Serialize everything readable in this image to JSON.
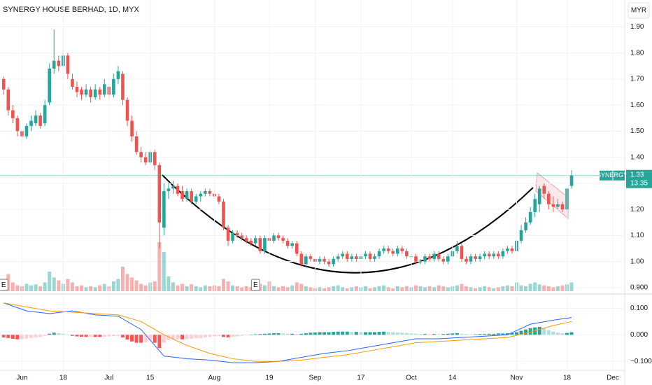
{
  "chart_data": [
    {
      "type": "candlestick",
      "title": "SYNERGY HOUSE BERHAD, 1D, MYX",
      "currency": "MYR",
      "symbol": "SYNERGY",
      "last_label": "1.33",
      "countdown": "13:35",
      "up_color": "#26a69a",
      "down_color": "#ef5350",
      "grid": true,
      "xlim": [
        -0.8,
        135.6
      ],
      "ylim": [
        0.881,
        2.003
      ],
      "yticks": [
        {
          "value": 1.9,
          "label": "1.90"
        },
        {
          "value": 1.8,
          "label": "1.80"
        },
        {
          "value": 1.7,
          "label": "1.70"
        },
        {
          "value": 1.6,
          "label": "1.60"
        },
        {
          "value": 1.5,
          "label": "1.50"
        },
        {
          "value": 1.4,
          "label": "1.40"
        },
        {
          "value": 1.3,
          "label": "1.30"
        },
        {
          "value": 1.2,
          "label": "1.20"
        },
        {
          "value": 1.1,
          "label": "1.10"
        },
        {
          "value": 1.0,
          "label": "1.00"
        },
        {
          "value": 0.9,
          "label": "0.900"
        }
      ],
      "candles": [
        [
          1.7,
          1.71,
          1.64,
          1.66
        ],
        [
          1.66,
          1.67,
          1.56,
          1.58
        ],
        [
          1.58,
          1.6,
          1.53,
          1.55
        ],
        [
          1.55,
          1.56,
          1.48,
          1.5
        ],
        [
          1.5,
          1.51,
          1.46,
          1.48
        ],
        [
          1.48,
          1.53,
          1.47,
          1.52
        ],
        [
          1.52,
          1.56,
          1.5,
          1.54
        ],
        [
          1.53,
          1.58,
          1.52,
          1.56
        ],
        [
          1.56,
          1.57,
          1.51,
          1.52
        ],
        [
          1.53,
          1.62,
          1.52,
          1.6
        ],
        [
          1.61,
          1.76,
          1.6,
          1.74
        ],
        [
          1.74,
          1.89,
          1.72,
          1.77
        ],
        [
          1.77,
          1.79,
          1.73,
          1.75
        ],
        [
          1.75,
          1.81,
          1.74,
          1.79
        ],
        [
          1.79,
          1.8,
          1.7,
          1.72
        ],
        [
          1.7,
          1.72,
          1.66,
          1.67
        ],
        [
          1.67,
          1.69,
          1.63,
          1.65
        ],
        [
          1.66,
          1.67,
          1.62,
          1.64
        ],
        [
          1.64,
          1.68,
          1.63,
          1.66
        ],
        [
          1.66,
          1.67,
          1.61,
          1.63
        ],
        [
          1.63,
          1.68,
          1.62,
          1.66
        ],
        [
          1.66,
          1.67,
          1.62,
          1.64
        ],
        [
          1.64,
          1.7,
          1.63,
          1.68
        ],
        [
          1.67,
          1.68,
          1.62,
          1.64
        ],
        [
          1.64,
          1.72,
          1.63,
          1.7
        ],
        [
          1.7,
          1.75,
          1.68,
          1.73
        ],
        [
          1.72,
          1.73,
          1.6,
          1.62
        ],
        [
          1.62,
          1.63,
          1.52,
          1.54
        ],
        [
          1.54,
          1.56,
          1.46,
          1.48
        ],
        [
          1.48,
          1.5,
          1.41,
          1.42
        ],
        [
          1.42,
          1.44,
          1.38,
          1.4
        ],
        [
          1.4,
          1.42,
          1.37,
          1.38
        ],
        [
          1.38,
          1.43,
          1.37,
          1.42
        ],
        [
          1.42,
          1.43,
          1.35,
          1.37
        ],
        [
          1.37,
          1.38,
          1.05,
          1.15
        ],
        [
          1.13,
          1.3,
          1.1,
          1.27
        ],
        [
          1.27,
          1.3,
          1.24,
          1.28
        ],
        [
          1.28,
          1.31,
          1.26,
          1.29
        ],
        [
          1.29,
          1.3,
          1.25,
          1.26
        ],
        [
          1.27,
          1.29,
          1.23,
          1.24
        ],
        [
          1.24,
          1.28,
          1.23,
          1.27
        ],
        [
          1.27,
          1.28,
          1.22,
          1.23
        ],
        [
          1.23,
          1.26,
          1.22,
          1.25
        ],
        [
          1.25,
          1.27,
          1.23,
          1.26
        ],
        [
          1.26,
          1.28,
          1.25,
          1.27
        ],
        [
          1.27,
          1.28,
          1.25,
          1.26
        ],
        [
          1.26,
          1.27,
          1.24,
          1.25
        ],
        [
          1.25,
          1.26,
          1.22,
          1.23
        ],
        [
          1.23,
          1.24,
          1.12,
          1.13
        ],
        [
          1.13,
          1.14,
          1.06,
          1.08
        ],
        [
          1.08,
          1.12,
          1.07,
          1.11
        ],
        [
          1.11,
          1.12,
          1.09,
          1.1
        ],
        [
          1.1,
          1.11,
          1.08,
          1.09
        ],
        [
          1.09,
          1.1,
          1.07,
          1.08
        ],
        [
          1.08,
          1.09,
          1.06,
          1.07
        ],
        [
          1.07,
          1.1,
          1.06,
          1.09
        ],
        [
          1.09,
          1.1,
          1.03,
          1.04
        ],
        [
          1.04,
          1.1,
          1.03,
          1.09
        ],
        [
          1.09,
          1.17,
          1.07,
          1.08
        ],
        [
          1.08,
          1.11,
          1.07,
          1.1
        ],
        [
          1.1,
          1.11,
          1.08,
          1.09
        ],
        [
          1.09,
          1.1,
          1.07,
          1.08
        ],
        [
          1.08,
          1.09,
          1.05,
          1.06
        ],
        [
          1.06,
          1.08,
          1.05,
          1.07
        ],
        [
          1.07,
          1.08,
          1.02,
          1.03
        ],
        [
          1.03,
          1.04,
          0.98,
          0.99
        ],
        [
          0.99,
          1.03,
          0.98,
          1.02
        ],
        [
          1.02,
          1.03,
          1.0,
          1.01
        ],
        [
          1.01,
          1.02,
          0.99,
          1.0
        ],
        [
          1.0,
          1.02,
          0.99,
          1.01
        ],
        [
          1.01,
          1.02,
          0.99,
          1.0
        ],
        [
          1.0,
          1.01,
          0.98,
          0.99
        ],
        [
          0.99,
          1.02,
          0.98,
          1.01
        ],
        [
          1.01,
          1.03,
          1.0,
          1.02
        ],
        [
          1.02,
          1.04,
          1.01,
          1.03
        ],
        [
          1.03,
          1.04,
          1.0,
          1.01
        ],
        [
          1.01,
          1.03,
          1.0,
          1.02
        ],
        [
          1.02,
          1.03,
          1.0,
          1.01
        ],
        [
          1.01,
          1.03,
          1.0,
          1.02
        ],
        [
          1.02,
          1.04,
          1.01,
          1.03
        ],
        [
          1.03,
          1.04,
          1.0,
          1.01
        ],
        [
          1.01,
          1.03,
          1.0,
          1.02
        ],
        [
          1.02,
          1.05,
          1.01,
          1.04
        ],
        [
          1.04,
          1.06,
          1.03,
          1.05
        ],
        [
          1.05,
          1.06,
          1.03,
          1.04
        ],
        [
          1.04,
          1.05,
          1.02,
          1.03
        ],
        [
          1.03,
          1.06,
          1.02,
          1.05
        ],
        [
          1.05,
          1.06,
          1.03,
          1.04
        ],
        [
          1.04,
          1.05,
          1.01,
          1.02
        ],
        [
          1.02,
          1.03,
          1.01,
          1.02
        ],
        [
          1.02,
          1.03,
          0.99,
          1.0
        ],
        [
          1.0,
          1.01,
          0.99,
          1.0
        ],
        [
          1.0,
          1.03,
          0.99,
          1.02
        ],
        [
          1.02,
          1.03,
          1.0,
          1.01
        ],
        [
          1.01,
          1.04,
          1.0,
          1.03
        ],
        [
          1.03,
          1.04,
          1.0,
          1.01
        ],
        [
          1.01,
          1.02,
          0.99,
          1.0
        ],
        [
          1.0,
          1.03,
          0.99,
          1.02
        ],
        [
          1.02,
          1.05,
          1.01,
          1.04
        ],
        [
          1.04,
          1.08,
          1.03,
          1.06
        ],
        [
          1.06,
          1.07,
          1.0,
          1.01
        ],
        [
          1.01,
          1.02,
          0.99,
          1.0
        ],
        [
          1.0,
          1.03,
          0.99,
          1.02
        ],
        [
          1.02,
          1.03,
          1.0,
          1.01
        ],
        [
          1.01,
          1.03,
          1.0,
          1.02
        ],
        [
          1.02,
          1.04,
          1.01,
          1.03
        ],
        [
          1.03,
          1.04,
          1.01,
          1.02
        ],
        [
          1.02,
          1.04,
          1.01,
          1.03
        ],
        [
          1.03,
          1.04,
          1.01,
          1.02
        ],
        [
          1.02,
          1.05,
          1.01,
          1.04
        ],
        [
          1.04,
          1.06,
          1.03,
          1.05
        ],
        [
          1.05,
          1.06,
          1.03,
          1.04
        ],
        [
          1.04,
          1.09,
          1.03,
          1.08
        ],
        [
          1.08,
          1.14,
          1.07,
          1.12
        ],
        [
          1.12,
          1.17,
          1.11,
          1.15
        ],
        [
          1.15,
          1.21,
          1.14,
          1.19
        ],
        [
          1.19,
          1.26,
          1.17,
          1.24
        ],
        [
          1.22,
          1.29,
          1.19,
          1.28
        ],
        [
          1.29,
          1.3,
          1.24,
          1.26
        ],
        [
          1.26,
          1.27,
          1.2,
          1.22
        ],
        [
          1.22,
          1.25,
          1.19,
          1.21
        ],
        [
          1.21,
          1.24,
          1.2,
          1.22
        ],
        [
          1.22,
          1.23,
          1.19,
          1.2
        ],
        [
          1.2,
          1.29,
          1.19,
          1.28
        ],
        [
          1.29,
          1.35,
          1.28,
          1.33
        ]
      ],
      "vlim": [
        0,
        100
      ],
      "volume": [
        20,
        35,
        18,
        12,
        10,
        15,
        12,
        14,
        10,
        18,
        40,
        28,
        22,
        15,
        25,
        18,
        10,
        12,
        8,
        10,
        8,
        12,
        15,
        10,
        20,
        25,
        50,
        35,
        28,
        22,
        15,
        12,
        18,
        20,
        100,
        80,
        30,
        18,
        12,
        15,
        10,
        14,
        10,
        8,
        12,
        10,
        12,
        10,
        25,
        20,
        12,
        10,
        8,
        10,
        8,
        10,
        15,
        12,
        20,
        10,
        8,
        10,
        8,
        12,
        18,
        15,
        10,
        8,
        6,
        8,
        6,
        8,
        10,
        12,
        8,
        6,
        8,
        10,
        8,
        10,
        6,
        8,
        10,
        12,
        8,
        6,
        10,
        8,
        10,
        8,
        12,
        10,
        8,
        10,
        8,
        12,
        10,
        8,
        10,
        12,
        15,
        10,
        8,
        6,
        8,
        10,
        8,
        6,
        8,
        10,
        12,
        10,
        18,
        12,
        10,
        15,
        18,
        14,
        12,
        10,
        8,
        10,
        12,
        14,
        18
      ],
      "events": [
        {
          "x": 0,
          "label": "E"
        },
        {
          "x": 55,
          "label": "E"
        }
      ]
    },
    {
      "type": "macd",
      "grid": true,
      "xlim": [
        -0.8,
        135.6
      ],
      "ylim": [
        -0.131,
        0.151
      ],
      "yticks": [
        {
          "value": 0.1,
          "label": "0.100"
        },
        {
          "value": 0,
          "label": "0.000"
        },
        {
          "value": -0.1,
          "label": "−0.100"
        }
      ],
      "xticks": [
        {
          "value": 4,
          "label": "Jun"
        },
        {
          "value": 13,
          "label": "18"
        },
        {
          "value": 23,
          "label": "Jul"
        },
        {
          "value": 32,
          "label": "15"
        },
        {
          "value": 46,
          "label": "Aug"
        },
        {
          "value": 58,
          "label": "19"
        },
        {
          "value": 68,
          "label": "Sep"
        },
        {
          "value": 78,
          "label": "17"
        },
        {
          "value": 89,
          "label": "Oct"
        },
        {
          "value": 98,
          "label": "14"
        },
        {
          "value": 112,
          "label": "Nov"
        },
        {
          "value": 123,
          "label": "18"
        },
        {
          "value": 133,
          "label": "Dec"
        }
      ],
      "histogram": [
        -0.01,
        -0.012,
        -0.015,
        -0.017,
        -0.016,
        -0.014,
        -0.012,
        -0.01,
        -0.008,
        -0.004,
        0.004,
        0.008,
        0.006,
        0.004,
        0.0,
        -0.004,
        -0.006,
        -0.007,
        -0.008,
        -0.007,
        -0.008,
        -0.008,
        -0.007,
        -0.006,
        -0.005,
        -0.004,
        -0.01,
        -0.018,
        -0.025,
        -0.03,
        -0.03,
        -0.028,
        -0.022,
        -0.03,
        -0.05,
        -0.03,
        -0.02,
        -0.018,
        -0.017,
        -0.017,
        -0.016,
        -0.015,
        -0.013,
        -0.012,
        -0.01,
        -0.008,
        -0.006,
        -0.005,
        -0.008,
        -0.01,
        -0.008,
        -0.006,
        -0.004,
        -0.002,
        0.0,
        0.002,
        0.003,
        0.004,
        0.005,
        0.006,
        0.006,
        0.005,
        0.004,
        0.004,
        0.003,
        0.004,
        0.006,
        0.008,
        0.009,
        0.01,
        0.01,
        0.01,
        0.011,
        0.012,
        0.012,
        0.012,
        0.011,
        0.011,
        0.01,
        0.01,
        0.01,
        0.01,
        0.011,
        0.012,
        0.011,
        0.01,
        0.009,
        0.008,
        0.007,
        0.005,
        0.004,
        0.003,
        0.003,
        0.002,
        0.003,
        0.002,
        0.003,
        0.004,
        0.005,
        0.006,
        0.004,
        0.003,
        0.002,
        0.002,
        0.003,
        0.003,
        0.004,
        0.004,
        0.005,
        0.005,
        0.006,
        0.007,
        0.01,
        0.015,
        0.02,
        0.025,
        0.028,
        0.03,
        0.025,
        0.018,
        0.012,
        0.008,
        0.006,
        0.007,
        0.01
      ],
      "series": [
        {
          "color": "#2962ff",
          "x": [
            0,
            5,
            10,
            15,
            20,
            25,
            30,
            35,
            40,
            45,
            50,
            55,
            60,
            65,
            70,
            75,
            80,
            85,
            90,
            95,
            100,
            105,
            110,
            115,
            120,
            124
          ],
          "values": [
            0.12,
            0.09,
            0.08,
            0.09,
            0.075,
            0.07,
            0.02,
            -0.08,
            -0.09,
            -0.095,
            -0.105,
            -0.105,
            -0.1,
            -0.085,
            -0.07,
            -0.06,
            -0.045,
            -0.03,
            -0.015,
            -0.015,
            -0.01,
            -0.005,
            0.0,
            0.04,
            0.055,
            0.065
          ]
        },
        {
          "color": "#ff9800",
          "x": [
            0,
            5,
            10,
            15,
            20,
            25,
            30,
            35,
            40,
            45,
            50,
            55,
            60,
            65,
            70,
            75,
            80,
            85,
            90,
            95,
            100,
            105,
            110,
            115,
            120,
            124
          ],
          "values": [
            0.12,
            0.105,
            0.09,
            0.085,
            0.08,
            0.075,
            0.05,
            0.0,
            -0.04,
            -0.07,
            -0.09,
            -0.1,
            -0.1,
            -0.095,
            -0.085,
            -0.075,
            -0.06,
            -0.045,
            -0.03,
            -0.025,
            -0.02,
            -0.015,
            -0.01,
            0.01,
            0.035,
            0.05
          ]
        }
      ]
    }
  ]
}
